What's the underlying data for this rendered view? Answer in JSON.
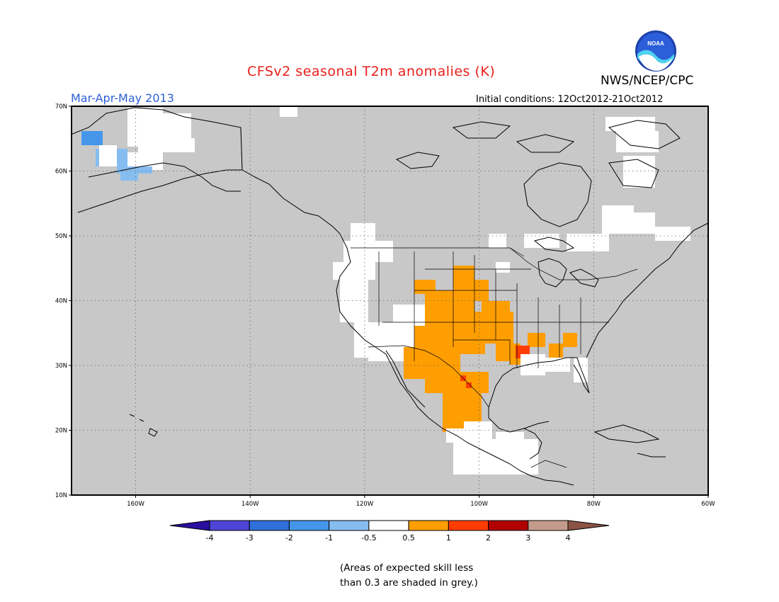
{
  "header": {
    "title": "CFSv2 seasonal T2m anomalies (K)",
    "agency": "NWS/NCEP/CPC",
    "season": "Mar-Apr-May 2013",
    "initial_conditions": "Initial conditions: 12Oct2012-21Oct2012",
    "logo_text": "NOAA"
  },
  "map": {
    "lat_labels": [
      "70N",
      "60N",
      "50N",
      "40N",
      "30N",
      "20N",
      "10N"
    ],
    "lon_labels": [
      "160W",
      "140W",
      "120W",
      "100W",
      "80W",
      "60W"
    ],
    "background_color": "#c8c8c8"
  },
  "colorbar": {
    "labels": [
      "-4",
      "-3",
      "-2",
      "-1",
      "-0.5",
      "0.5",
      "1",
      "2",
      "3",
      "4"
    ],
    "colors": [
      "#2a0f9e",
      "#4e44d6",
      "#2f6fd7",
      "#4596ea",
      "#86bdf1",
      "#ffffff",
      "#ff9e00",
      "#ff3d00",
      "#b00000",
      "#c49b8a",
      "#8b5445"
    ]
  },
  "note": {
    "line1": "(Areas of expected skill less",
    "line2": "than 0.3 are shaded in grey.)"
  }
}
